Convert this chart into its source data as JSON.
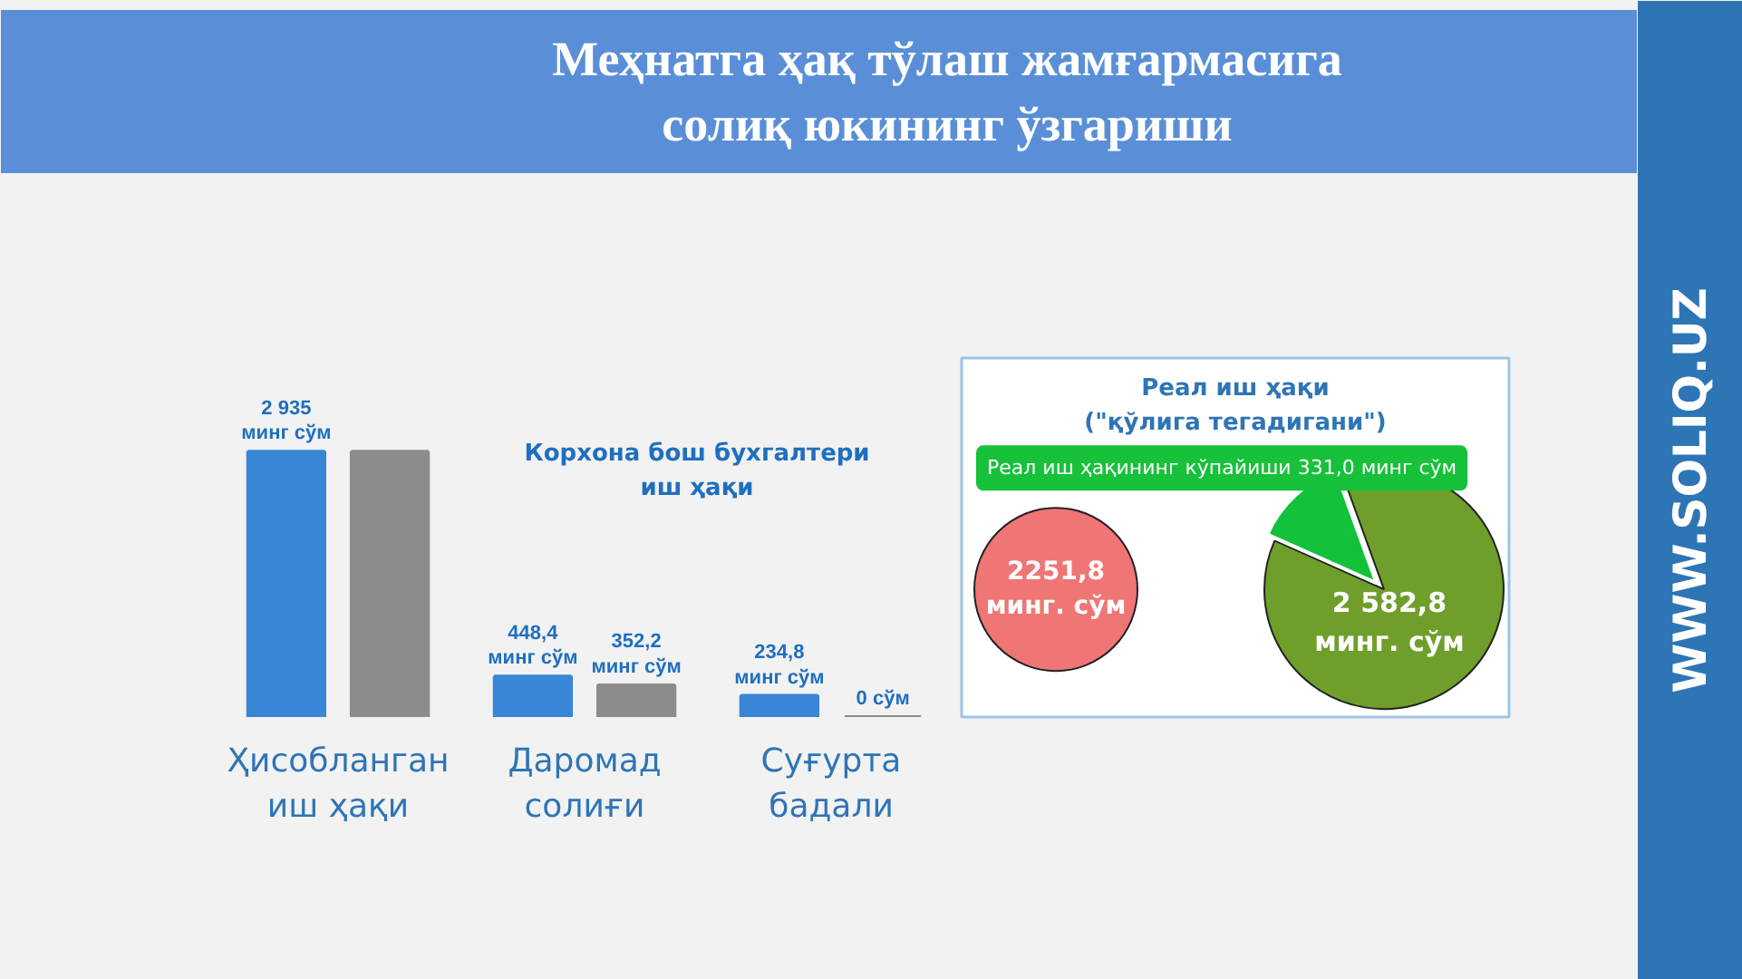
{
  "chart_data": [
    {
      "type": "bar",
      "title": "Меҳнатга ҳақ тўлаш жамғармасига\nсолиқ юкининг ўзгариши",
      "subtitle": "Корхона бош бухгалтери\nиш ҳақи",
      "categories": [
        "Ҳисобланган\nиш ҳақи",
        "Даромад\nсолиғи",
        "Суғурта\nбадали"
      ],
      "series": [
        {
          "color": "#3a86d6",
          "values": [
            2935,
            448.4,
            234.8
          ],
          "value_labels": [
            "2 935\nминг сўм",
            "448,4\nминг сўм",
            "234,8\nминг сўм"
          ]
        },
        {
          "color": "#8c8c8c",
          "values": [
            2935,
            352.2,
            0
          ],
          "value_labels": [
            null,
            "352,2\nминг сўм",
            "0 сўм"
          ]
        }
      ],
      "annotations": [
        "WWW.SOLIQ.UZ"
      ]
    },
    {
      "type": "pie",
      "title": "Реал иш ҳақи\n(\"қўлига тегадигани\")",
      "categories": [
        null
      ],
      "values": [
        2251.8
      ],
      "colors": [
        "#f07575"
      ],
      "value_labels": [
        "2251,8\nминг. сўм"
      ]
    },
    {
      "type": "pie",
      "categories": [
        null,
        null
      ],
      "values": [
        87.2,
        12.8
      ],
      "colors": [
        "#6f9f2a",
        "#14c13a"
      ],
      "annotations": [
        "2 582,8\nминг. сўм",
        "Реал иш ҳақининг кўпайиши 331,0 минг сўм"
      ]
    }
  ]
}
